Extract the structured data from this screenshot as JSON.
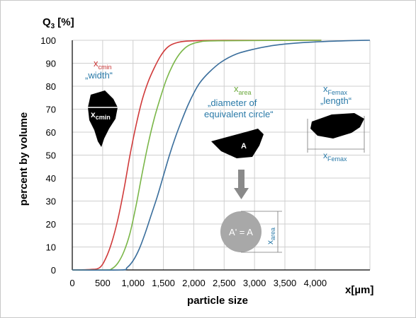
{
  "chart_data": {
    "type": "line",
    "title": "",
    "ylabel": "percent by volume",
    "xlabel": "particle size",
    "y_axis_symbol": "Q",
    "y_axis_symbol_sub": "3",
    "y_axis_unit": "[%]",
    "x_axis_unit": "x[µm]",
    "xlim": [
      0,
      4900
    ],
    "ylim": [
      0,
      100
    ],
    "grid": true,
    "x_ticks": [
      0,
      500,
      1000,
      1500,
      2000,
      2500,
      3000,
      3500,
      4000
    ],
    "x_tick_labels": [
      "0",
      "500",
      "1,000",
      "1,500",
      "2,000",
      "2,500",
      "3,000",
      "3,500",
      "4,000"
    ],
    "y_ticks": [
      0,
      10,
      20,
      30,
      40,
      50,
      60,
      70,
      80,
      90,
      100
    ],
    "y_tick_labels": [
      "0",
      "10",
      "20",
      "30",
      "40",
      "50",
      "60",
      "70",
      "80",
      "90",
      "100"
    ],
    "series": [
      {
        "color": "#d03a3a",
        "points": [
          [
            0,
            0
          ],
          [
            300,
            0.2
          ],
          [
            450,
            1
          ],
          [
            550,
            5
          ],
          [
            650,
            12
          ],
          [
            750,
            22
          ],
          [
            850,
            35
          ],
          [
            950,
            50
          ],
          [
            1050,
            63
          ],
          [
            1150,
            74
          ],
          [
            1250,
            82
          ],
          [
            1350,
            88
          ],
          [
            1450,
            93
          ],
          [
            1550,
            96.5
          ],
          [
            1650,
            98.3
          ],
          [
            1800,
            99.4
          ],
          [
            2000,
            99.8
          ],
          [
            2500,
            100
          ],
          [
            4100,
            100
          ]
        ]
      },
      {
        "color": "#7ab648",
        "points": [
          [
            0,
            0
          ],
          [
            550,
            0
          ],
          [
            650,
            0.5
          ],
          [
            750,
            3
          ],
          [
            850,
            8
          ],
          [
            950,
            16
          ],
          [
            1050,
            28
          ],
          [
            1150,
            42
          ],
          [
            1250,
            55
          ],
          [
            1350,
            66
          ],
          [
            1450,
            75
          ],
          [
            1550,
            83
          ],
          [
            1650,
            89
          ],
          [
            1750,
            93.5
          ],
          [
            1850,
            96.5
          ],
          [
            1950,
            98.2
          ],
          [
            2100,
            99.3
          ],
          [
            2400,
            99.8
          ],
          [
            4100,
            100
          ]
        ]
      },
      {
        "color": "#3a6e9c",
        "points": [
          [
            0,
            0
          ],
          [
            800,
            0
          ],
          [
            900,
            1
          ],
          [
            1000,
            4
          ],
          [
            1100,
            9
          ],
          [
            1200,
            16
          ],
          [
            1300,
            24
          ],
          [
            1400,
            32
          ],
          [
            1500,
            41
          ],
          [
            1600,
            50
          ],
          [
            1700,
            58
          ],
          [
            1800,
            65
          ],
          [
            1900,
            71.5
          ],
          [
            2000,
            77
          ],
          [
            2100,
            81.5
          ],
          [
            2250,
            86
          ],
          [
            2450,
            90.5
          ],
          [
            2700,
            94
          ],
          [
            3000,
            96.2
          ],
          [
            3300,
            97.7
          ],
          [
            3600,
            98.6
          ],
          [
            4000,
            99.3
          ],
          [
            4500,
            99.8
          ],
          [
            4900,
            100
          ]
        ]
      }
    ],
    "annotations": {
      "cmin": {
        "x_symbol": "x",
        "x_sub": "cmin",
        "quote": "„width“",
        "inner_x": "x",
        "inner_sub": "cmin",
        "color_title": "#c83232",
        "color_quote": "#2a7aa8"
      },
      "area": {
        "x_symbol": "x",
        "x_sub": "area",
        "quote_line1": "„diameter of",
        "quote_line2": "equivalent circle“",
        "shape_label": "A",
        "circle_label": "A' = A",
        "vertical_x": "x",
        "vertical_sub": "area",
        "color_title": "#6aa83a",
        "color_quote": "#2a7aa8"
      },
      "femax": {
        "x_symbol": "x",
        "x_sub": "Femax",
        "quote": "„length“",
        "bottom_x": "x",
        "bottom_sub": "Femax",
        "color_title": "#2a7aa8",
        "color_quote": "#2a7aa8"
      }
    }
  }
}
